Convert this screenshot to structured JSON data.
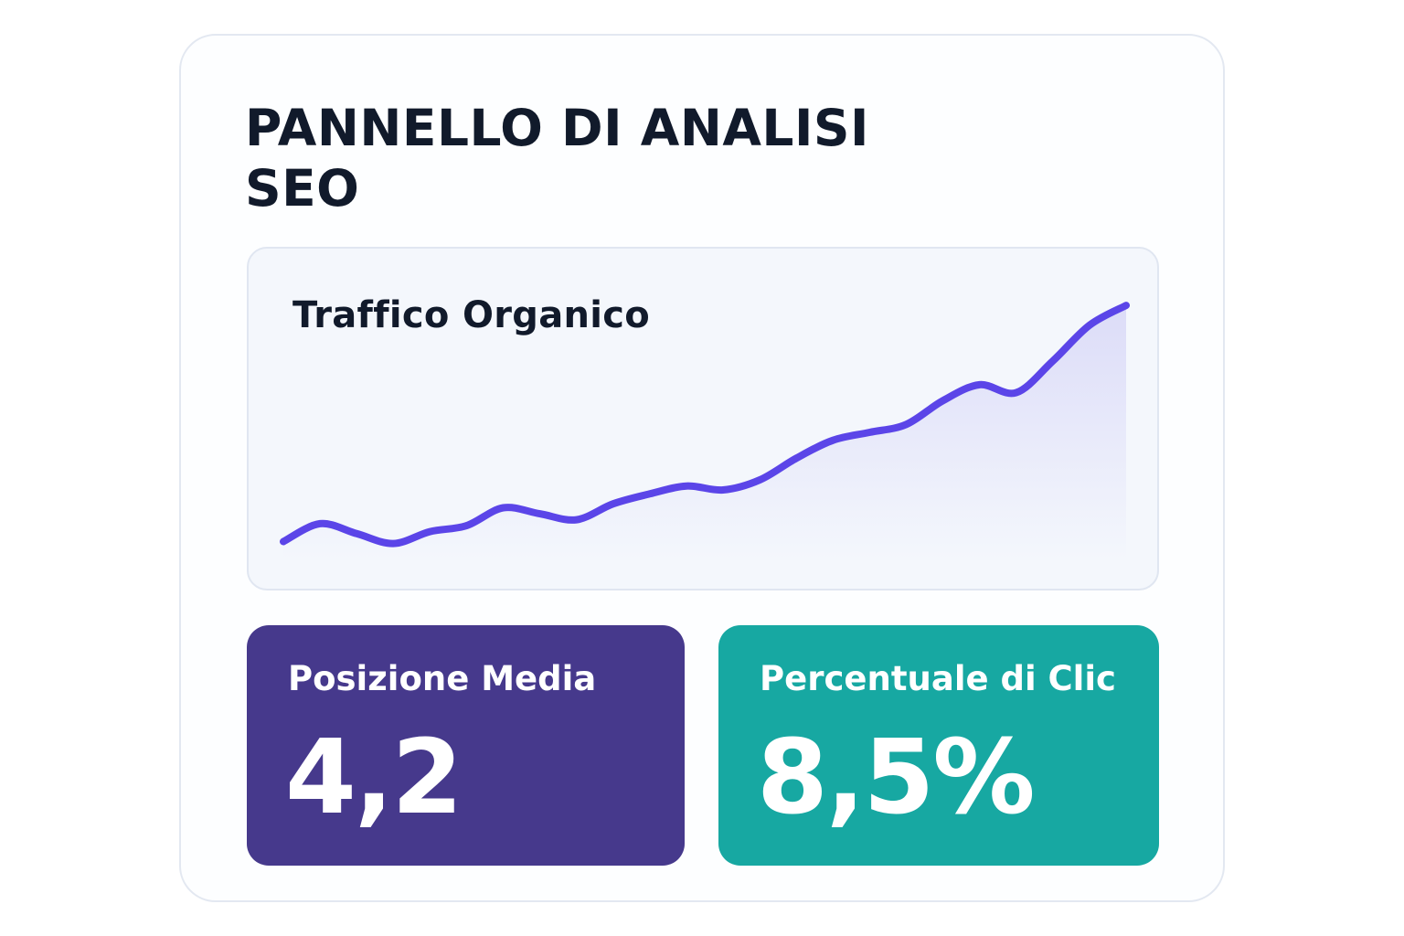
{
  "dashboard": {
    "title": "PANNELLO DI ANALISI SEO"
  },
  "traffic_card": {
    "title": "Traffico Organico"
  },
  "metrics": [
    {
      "label": "Posizione Media",
      "value": "4,2",
      "color": "#46398c"
    },
    {
      "label": "Percentuale di Clic",
      "value": "8,5%",
      "color": "#17a8a2"
    }
  ],
  "colors": {
    "line": "#5b45e8",
    "area_top": "#dcdcf8",
    "area_bottom": "#f4f7fc",
    "title": "#111a2b"
  },
  "chart_data": {
    "type": "area",
    "title": "Traffico Organico",
    "x": [
      0,
      1,
      2,
      3,
      4,
      5,
      6,
      7,
      8,
      9,
      10,
      11,
      12,
      13,
      14,
      15,
      16,
      17,
      18,
      19,
      20,
      21,
      22,
      23
    ],
    "values": [
      9,
      18,
      13,
      8,
      14,
      17,
      26,
      23,
      20,
      28,
      33,
      37,
      35,
      40,
      51,
      60,
      64,
      68,
      80,
      88,
      84,
      100,
      118,
      128
    ],
    "ylim": [
      0,
      140
    ],
    "grid": false,
    "legend": "none"
  }
}
